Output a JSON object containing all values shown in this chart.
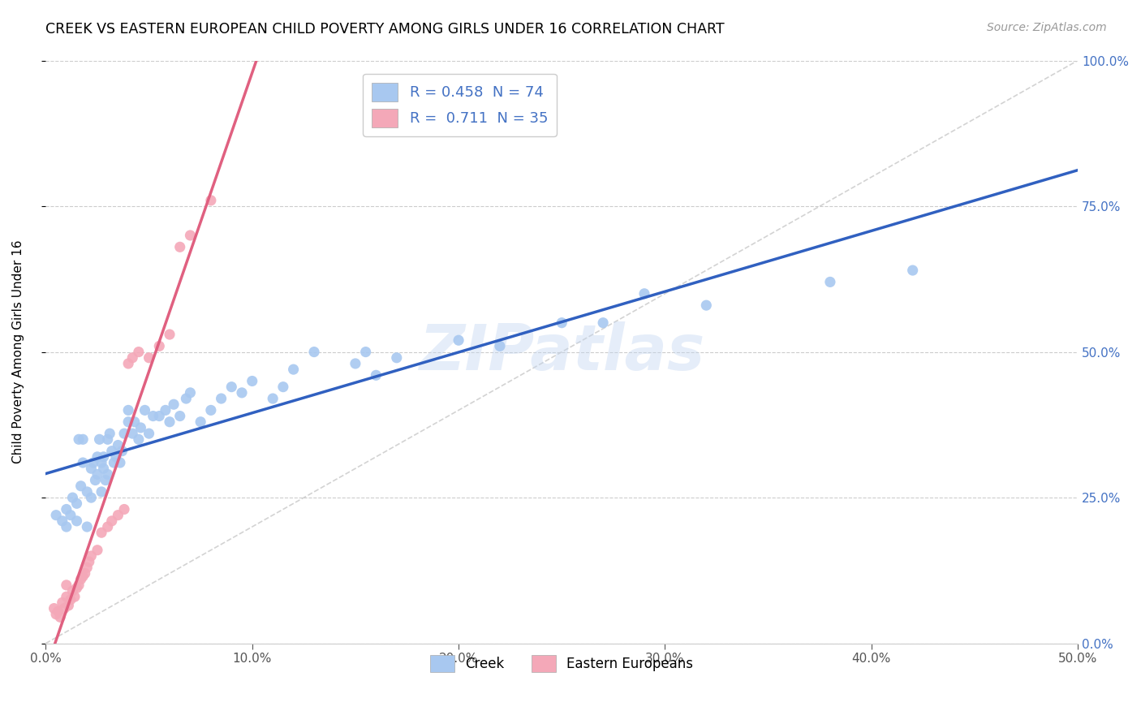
{
  "title": "CREEK VS EASTERN EUROPEAN CHILD POVERTY AMONG GIRLS UNDER 16 CORRELATION CHART",
  "source": "Source: ZipAtlas.com",
  "xlim": [
    0.0,
    0.5
  ],
  "ylim": [
    0.0,
    1.0
  ],
  "creek_color": "#A8C8F0",
  "eastern_color": "#F4A8B8",
  "creek_line_color": "#3060C0",
  "eastern_line_color": "#E06080",
  "diag_line_color": "#C8C8C8",
  "creek_R": 0.458,
  "creek_N": 74,
  "eastern_R": 0.711,
  "eastern_N": 35,
  "ylabel": "Child Poverty Among Girls Under 16",
  "watermark": "ZIPatlas",
  "creek_scatter_x": [
    0.005,
    0.008,
    0.01,
    0.01,
    0.012,
    0.013,
    0.015,
    0.015,
    0.016,
    0.017,
    0.018,
    0.018,
    0.02,
    0.02,
    0.022,
    0.022,
    0.023,
    0.024,
    0.025,
    0.025,
    0.026,
    0.027,
    0.027,
    0.028,
    0.028,
    0.029,
    0.03,
    0.03,
    0.031,
    0.032,
    0.033,
    0.034,
    0.035,
    0.036,
    0.037,
    0.038,
    0.04,
    0.04,
    0.042,
    0.043,
    0.045,
    0.046,
    0.048,
    0.05,
    0.052,
    0.055,
    0.058,
    0.06,
    0.062,
    0.065,
    0.068,
    0.07,
    0.075,
    0.08,
    0.085,
    0.09,
    0.095,
    0.1,
    0.11,
    0.115,
    0.12,
    0.13,
    0.15,
    0.155,
    0.16,
    0.17,
    0.2,
    0.22,
    0.25,
    0.27,
    0.29,
    0.32,
    0.38,
    0.42
  ],
  "creek_scatter_y": [
    0.22,
    0.21,
    0.2,
    0.23,
    0.22,
    0.25,
    0.21,
    0.24,
    0.35,
    0.27,
    0.31,
    0.35,
    0.2,
    0.26,
    0.25,
    0.3,
    0.31,
    0.28,
    0.29,
    0.32,
    0.35,
    0.26,
    0.31,
    0.3,
    0.32,
    0.28,
    0.29,
    0.35,
    0.36,
    0.33,
    0.31,
    0.32,
    0.34,
    0.31,
    0.33,
    0.36,
    0.38,
    0.4,
    0.36,
    0.38,
    0.35,
    0.37,
    0.4,
    0.36,
    0.39,
    0.39,
    0.4,
    0.38,
    0.41,
    0.39,
    0.42,
    0.43,
    0.38,
    0.4,
    0.42,
    0.44,
    0.43,
    0.45,
    0.42,
    0.44,
    0.47,
    0.5,
    0.48,
    0.5,
    0.46,
    0.49,
    0.52,
    0.51,
    0.55,
    0.55,
    0.6,
    0.58,
    0.62,
    0.64
  ],
  "eastern_scatter_x": [
    0.004,
    0.005,
    0.006,
    0.007,
    0.008,
    0.009,
    0.01,
    0.01,
    0.011,
    0.012,
    0.013,
    0.014,
    0.015,
    0.016,
    0.017,
    0.018,
    0.019,
    0.02,
    0.021,
    0.022,
    0.025,
    0.027,
    0.03,
    0.032,
    0.035,
    0.038,
    0.04,
    0.042,
    0.045,
    0.05,
    0.055,
    0.06,
    0.065,
    0.07,
    0.08
  ],
  "eastern_scatter_y": [
    0.06,
    0.05,
    0.055,
    0.045,
    0.07,
    0.06,
    0.08,
    0.1,
    0.065,
    0.075,
    0.09,
    0.08,
    0.095,
    0.1,
    0.11,
    0.115,
    0.12,
    0.13,
    0.14,
    0.15,
    0.16,
    0.19,
    0.2,
    0.21,
    0.22,
    0.23,
    0.48,
    0.49,
    0.5,
    0.49,
    0.51,
    0.53,
    0.68,
    0.7,
    0.76
  ]
}
